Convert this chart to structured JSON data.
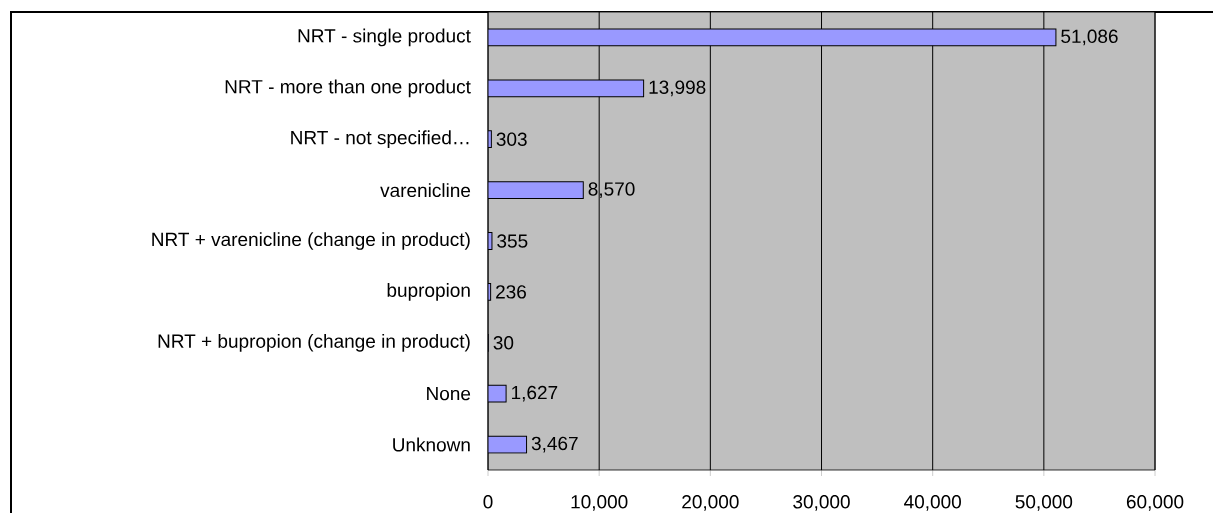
{
  "chart_data": {
    "type": "bar",
    "orientation": "horizontal",
    "categories": [
      "NRT - single product",
      "NRT - more than one product",
      "NRT - not specified…",
      "varenicline",
      "NRT + varenicline (change in product)",
      "bupropion",
      "NRT + bupropion (change in product)",
      "None",
      "Unknown"
    ],
    "values": [
      51086,
      13998,
      303,
      8570,
      355,
      236,
      30,
      1627,
      3467
    ],
    "value_labels": [
      "51,086",
      "13,998",
      "303",
      "8,570",
      "355",
      "236",
      "30",
      "1,627",
      "3,467"
    ],
    "color": "#9999ff",
    "xlim": [
      0,
      60000
    ],
    "xticks": [
      0,
      {
        "value": 10000,
        "label": "10,000"
      },
      {
        "value": 20000,
        "label": "20,000"
      },
      {
        "value": 30000,
        "label": "30,000"
      },
      {
        "value": 40000,
        "label": "40,000"
      },
      {
        "value": 50000,
        "label": "50,000"
      },
      {
        "value": 60000,
        "label": "60,000"
      }
    ],
    "grid": "x"
  }
}
